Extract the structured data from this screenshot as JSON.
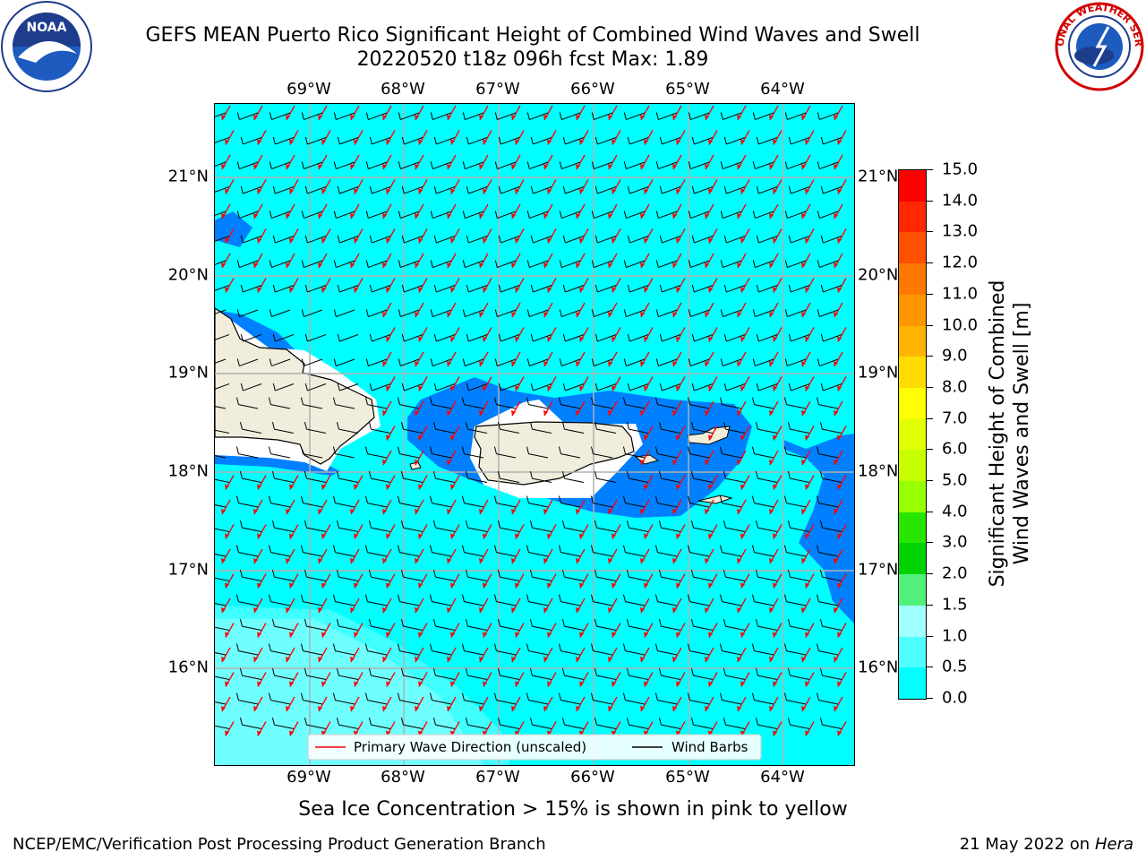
{
  "header": {
    "title_line1": "GEFS MEAN Puerto Rico Significant Height of Combined Wind Waves and Swell",
    "title_line2": "20220520 t18z 096h fcst   Max: 1.89"
  },
  "map": {
    "lon_ticks": [
      "69°W",
      "68°W",
      "67°W",
      "66°W",
      "65°W",
      "64°W"
    ],
    "lat_ticks": [
      "21°N",
      "20°N",
      "19°N",
      "18°N",
      "17°N",
      "16°N"
    ],
    "legend": {
      "primary_wave": "Primary Wave Direction (unscaled)",
      "wind_barbs": "Wind Barbs"
    },
    "colors": {
      "ocean": "#00ffff",
      "land": "#f0eddc",
      "level_0_5_1_0": "#0080ff",
      "level_1_5_2_0": "#40ffff",
      "level_2_0_2_5": "#70ffff",
      "wave_arrow": "#ff0000",
      "wind_barb": "#000000"
    }
  },
  "colorbar": {
    "label_line1": "Significant Height of Combined",
    "label_line2": "Wind Waves and Swell [m]",
    "ticks": [
      "15.0",
      "14.0",
      "13.0",
      "12.0",
      "11.0",
      "10.0",
      "9.0",
      "8.0",
      "7.0",
      "6.0",
      "5.0",
      "4.0",
      "3.0",
      "2.0",
      "1.5",
      "1.0",
      "0.5",
      "0.0"
    ],
    "colors": [
      "#ff0000",
      "#ff2800",
      "#ff5000",
      "#ff7800",
      "#ff9600",
      "#ffb400",
      "#ffdc00",
      "#ffff00",
      "#e1ff00",
      "#c8ff00",
      "#96ff00",
      "#28e600",
      "#00d200",
      "#50f07a",
      "#a0ffff",
      "#50ffff",
      "#00ffff",
      "#0080ff",
      "#0000ff"
    ]
  },
  "note": "Sea Ice Concentration > 15% is shown in pink to yellow",
  "footer": {
    "left": "NCEP/EMC/Verification Post Processing Product Generation Branch",
    "date": "21 May 2022 on",
    "machine": "Hera"
  },
  "logos": {
    "noaa": "NOAA",
    "nws": "NATIONAL WEATHER SERVICE"
  }
}
